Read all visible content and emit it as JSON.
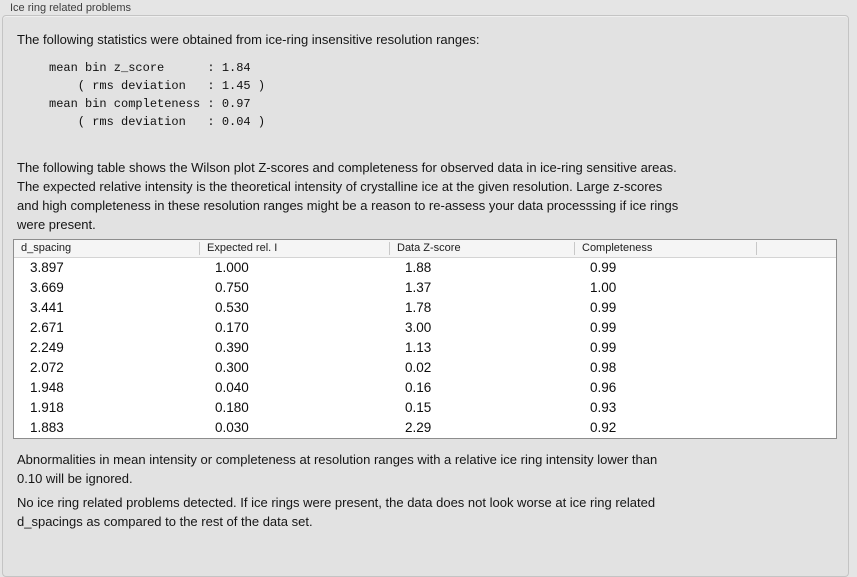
{
  "panel": {
    "title": "Ice ring related problems"
  },
  "statistics": {
    "intro": "The following statistics were obtained from ice-ring insensitive resolution ranges:",
    "block": "mean bin z_score      : 1.84\n    ( rms deviation   : 1.45 )\nmean bin completeness : 0.97\n    ( rms deviation   : 0.04 )",
    "values": {
      "mean_bin_z_score": "1.84",
      "z_score_rms_deviation": "1.45",
      "mean_bin_completeness": "0.97",
      "completeness_rms_deviation": "0.04"
    }
  },
  "table_intro": "The following table shows the Wilson plot Z-scores and completeness for observed data in ice-ring sensitive areas.\nThe expected relative intensity is the theoretical intensity of crystalline ice at the given resolution. Large z-scores\nand high completeness in these resolution ranges might be a reason to re-assess your data processsing if ice rings\nwere present.",
  "table": {
    "headers": [
      "d_spacing",
      "Expected rel. I",
      "Data Z-score",
      "Completeness",
      ""
    ],
    "rows": [
      [
        "3.897",
        "1.000",
        "1.88",
        "0.99"
      ],
      [
        "3.669",
        "0.750",
        "1.37",
        "1.00"
      ],
      [
        "3.441",
        "0.530",
        "1.78",
        "0.99"
      ],
      [
        "2.671",
        "0.170",
        "3.00",
        "0.99"
      ],
      [
        "2.249",
        "0.390",
        "1.13",
        "0.99"
      ],
      [
        "2.072",
        "0.300",
        "0.02",
        "0.98"
      ],
      [
        "1.948",
        "0.040",
        "0.16",
        "0.96"
      ],
      [
        "1.918",
        "0.180",
        "0.15",
        "0.93"
      ],
      [
        "1.883",
        "0.030",
        "2.29",
        "0.92"
      ]
    ]
  },
  "notes": {
    "ignore_note": "Abnormalities in mean intensity or completeness at resolution ranges with a relative ice ring intensity lower than\n0.10 will be ignored.",
    "conclusion": "No ice ring related problems detected. If ice rings were present, the data does not look worse at ice ring related\nd_spacings as compared to the rest of the data set."
  },
  "colors": {
    "page_background": "#e5e5e5",
    "groupbox_background": "#e2e2e2",
    "groupbox_border": "#c4c4c4",
    "table_background": "#ffffff",
    "table_border": "#8d8d8d",
    "table_header_background": "#f5f5f5",
    "text": "#151515"
  }
}
